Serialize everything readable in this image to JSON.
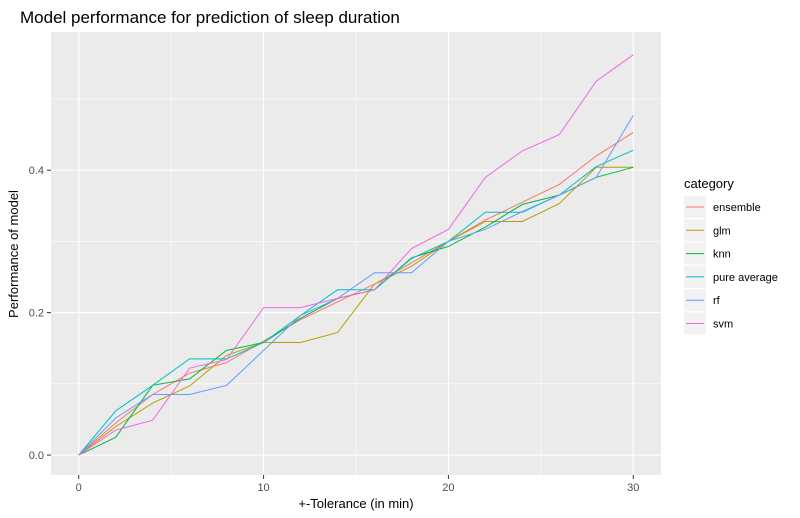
{
  "chart_data": {
    "type": "line",
    "title": "Model performance for prediction of sleep duration",
    "xlabel": "+-Tolerance (in min)",
    "ylabel": "Performance of model",
    "xlim": [
      -1.5,
      31.5
    ],
    "ylim": [
      -0.028,
      0.594
    ],
    "xticks": [
      0,
      10,
      20,
      30
    ],
    "xtick_labels": [
      "0",
      "10",
      "20",
      "30"
    ],
    "yticks": [
      0.0,
      0.2,
      0.4
    ],
    "ytick_labels": [
      "0.0",
      "0.2",
      "0.4"
    ],
    "x": [
      0,
      2,
      4,
      6,
      8,
      10,
      12,
      14,
      16,
      18,
      20,
      22,
      24,
      26,
      28,
      30
    ],
    "legend_title": "category",
    "legend_position": "right",
    "grid": true,
    "series": [
      {
        "name": "ensemble",
        "color": "#F8766D",
        "values": [
          0.0,
          0.045,
          0.085,
          0.115,
          0.13,
          0.16,
          0.19,
          0.215,
          0.24,
          0.27,
          0.3,
          0.33,
          0.355,
          0.38,
          0.42,
          0.453
        ]
      },
      {
        "name": "glm",
        "color": "#B79F00",
        "values": [
          0.0,
          0.04,
          0.073,
          0.097,
          0.14,
          0.158,
          0.158,
          0.172,
          0.24,
          0.265,
          0.3,
          0.328,
          0.328,
          0.353,
          0.404,
          0.404
        ]
      },
      {
        "name": "knn",
        "color": "#00BA38",
        "values": [
          0.0,
          0.025,
          0.098,
          0.107,
          0.147,
          0.158,
          0.192,
          0.22,
          0.232,
          0.277,
          0.293,
          0.32,
          0.352,
          0.365,
          0.39,
          0.404
        ]
      },
      {
        "name": "pure average",
        "color": "#00BFC4",
        "values": [
          0.0,
          0.062,
          0.098,
          0.135,
          0.135,
          0.158,
          0.196,
          0.232,
          0.232,
          0.276,
          0.3,
          0.341,
          0.341,
          0.365,
          0.405,
          0.428
        ]
      },
      {
        "name": "rf",
        "color": "#619CFF",
        "values": [
          0.0,
          0.052,
          0.085,
          0.085,
          0.098,
          0.147,
          0.196,
          0.22,
          0.256,
          0.256,
          0.3,
          0.317,
          0.342,
          0.365,
          0.39,
          0.477
        ]
      },
      {
        "name": "svm",
        "color": "#F564E3",
        "values": [
          0.0,
          0.035,
          0.049,
          0.122,
          0.134,
          0.207,
          0.207,
          0.22,
          0.232,
          0.29,
          0.317,
          0.39,
          0.427,
          0.45,
          0.525,
          0.562
        ]
      }
    ]
  }
}
